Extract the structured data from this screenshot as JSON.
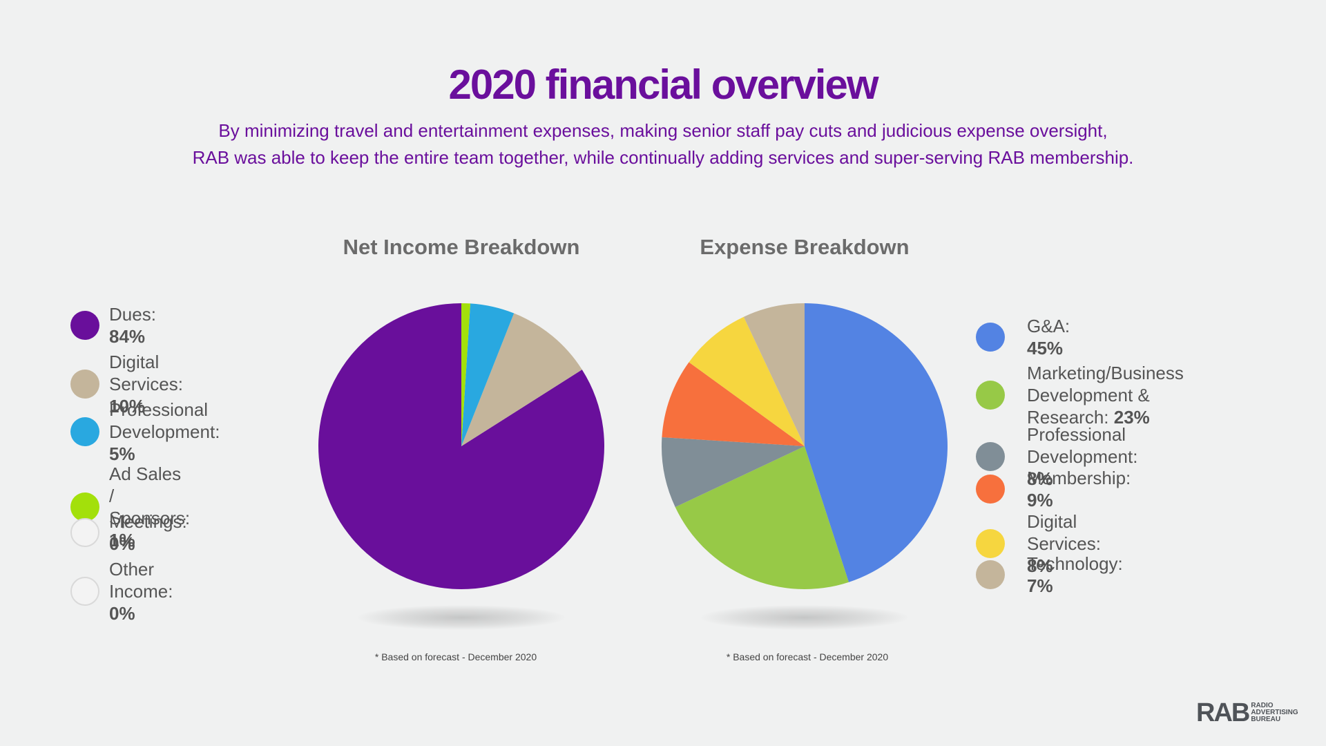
{
  "header": {
    "title": "2020 financial overview",
    "subtitle_line1": "By minimizing travel and entertainment expenses, making senior staff pay cuts and judicious expense oversight,",
    "subtitle_line2": "RAB was able to keep the entire team together, while continually adding services and super-serving RAB membership."
  },
  "chart_data": [
    {
      "type": "pie",
      "title": "Net Income Breakdown",
      "footnote": "* Based on forecast - December 2020",
      "slices": [
        {
          "label": "Dues:",
          "label_lines": [
            "Dues:"
          ],
          "value_text": "84%",
          "value": 84,
          "color": "#690f9b"
        },
        {
          "label": "Digital Services:",
          "label_lines": [
            "Digital Services:"
          ],
          "value_text": "10%",
          "value": 10,
          "color": "#c4b59b"
        },
        {
          "label": "Professional Development:",
          "label_lines": [
            "Professional",
            "Development:"
          ],
          "value_text": "5%",
          "value": 5,
          "color": "#29a8e0"
        },
        {
          "label": "Ad Sales / Sponsors:",
          "label_lines": [
            "Ad Sales / Sponsors:"
          ],
          "value_text": "1%",
          "value": 1,
          "color": "#a3e00b"
        },
        {
          "label": "Meetings:",
          "label_lines": [
            "Meetings:"
          ],
          "value_text": "0%",
          "value": 0,
          "color": "#f3f3f3"
        },
        {
          "label": "Other Income:",
          "label_lines": [
            "Other Income:"
          ],
          "value_text": "0%",
          "value": 0,
          "color": "#f3f3f3"
        }
      ]
    },
    {
      "type": "pie",
      "title": "Expense Breakdown",
      "footnote": "* Based on forecast - December 2020",
      "slices": [
        {
          "label": "G&A:",
          "label_lines": [
            "G&A:"
          ],
          "value_text": "45%",
          "value": 45,
          "color": "#5383e3"
        },
        {
          "label": "Marketing/Business Development & Research:",
          "label_lines": [
            "Marketing/Business",
            "Development & Research:"
          ],
          "value_text": "23%",
          "value": 23,
          "color": "#97c947"
        },
        {
          "label": "Professional Development:",
          "label_lines": [
            "Professional Development:"
          ],
          "value_text": "8%",
          "value": 8,
          "color": "#808e97"
        },
        {
          "label": "Membership:",
          "label_lines": [
            "Membership:"
          ],
          "value_text": "9%",
          "value": 9,
          "color": "#f7703d"
        },
        {
          "label": "Digital Services:",
          "label_lines": [
            "Digital Services:"
          ],
          "value_text": "8%",
          "value": 8,
          "color": "#f6d63f"
        },
        {
          "label": "Technology:",
          "label_lines": [
            "Technology:"
          ],
          "value_text": "7%",
          "value": 7,
          "color": "#c4b59b"
        }
      ]
    }
  ],
  "logo": {
    "main": "RAB",
    "sub_lines": [
      "RADIO",
      "ADVERTISING",
      "BUREAU"
    ]
  }
}
